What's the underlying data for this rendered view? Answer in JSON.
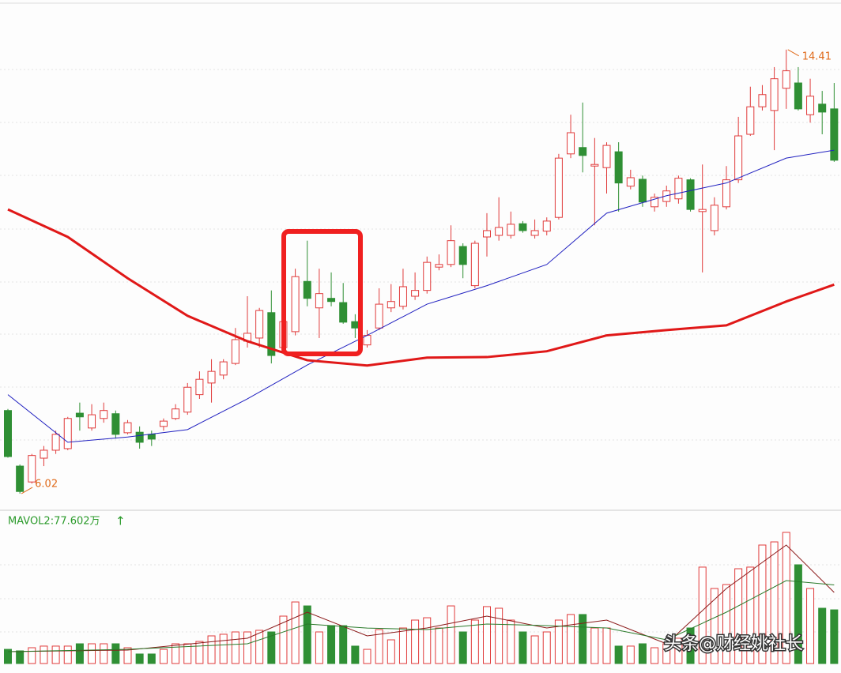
{
  "chart_data": [
    {
      "type": "candlestick",
      "up_color": "#e03a3a",
      "down_color": "#2f8f34",
      "ylim": [
        5.72,
        14.9
      ],
      "high_label": "14.41",
      "low_label": "6.02",
      "label_color": "#e06a1a",
      "open": [
        7.59,
        6.54,
        6.24,
        6.69,
        6.84,
        6.87,
        7.54,
        7.26,
        7.44,
        7.53,
        7.17,
        7.18,
        7.14,
        7.29,
        7.44,
        7.56,
        7.89,
        8.11,
        8.26,
        8.48,
        8.9,
        8.96,
        9.44,
        8.78,
        9.08,
        10.03,
        9.53,
        9.71,
        9.63,
        9.27,
        8.83,
        9.15,
        9.53,
        9.56,
        9.75,
        9.86,
        10.3,
        10.35,
        10.69,
        9.95,
        10.87,
        10.9,
        10.9,
        11.12,
        10.9,
        10.98,
        11.24,
        12.44,
        12.56,
        12.21,
        12.18,
        12.48,
        11.83,
        11.96,
        11.44,
        11.54,
        11.59,
        11.95,
        11.35,
        10.99,
        11.44,
        11.95,
        12.81,
        13.33,
        13.26,
        13.68,
        13.78,
        13.18,
        13.38,
        13.29
      ],
      "high": [
        7.62,
        6.57,
        6.77,
        6.92,
        7.21,
        7.47,
        7.74,
        7.71,
        7.74,
        7.59,
        7.41,
        7.29,
        7.21,
        7.44,
        7.71,
        8.11,
        8.33,
        8.56,
        8.56,
        9.15,
        9.75,
        9.53,
        9.86,
        9.45,
        10.27,
        10.8,
        10.27,
        10.2,
        10.0,
        9.41,
        9.11,
        9.9,
        9.98,
        10.27,
        10.2,
        10.5,
        10.54,
        11.09,
        10.75,
        10.8,
        11.32,
        11.62,
        11.35,
        11.17,
        11.2,
        11.24,
        12.44,
        13.18,
        13.41,
        12.74,
        12.66,
        12.66,
        12.14,
        12.03,
        11.69,
        11.84,
        12.03,
        11.98,
        12.24,
        11.62,
        12.21,
        13.14,
        13.71,
        13.74,
        14.08,
        14.41,
        14.08,
        13.86,
        13.63,
        13.78
      ],
      "low": [
        6.7,
        6.02,
        6.21,
        6.54,
        6.77,
        6.84,
        7.21,
        7.21,
        7.36,
        7.06,
        7.14,
        6.87,
        6.92,
        7.21,
        7.41,
        7.51,
        7.81,
        7.74,
        8.18,
        8.45,
        8.78,
        8.78,
        8.48,
        8.71,
        9.01,
        9.56,
        8.96,
        9.56,
        9.23,
        8.96,
        8.78,
        9.11,
        9.45,
        9.5,
        9.68,
        9.8,
        10.24,
        10.3,
        10.09,
        9.9,
        10.5,
        10.8,
        10.84,
        10.95,
        10.84,
        10.9,
        11.2,
        12.36,
        12.09,
        11.09,
        11.69,
        11.35,
        11.77,
        11.44,
        11.35,
        11.44,
        11.5,
        11.35,
        10.2,
        10.9,
        11.39,
        11.89,
        12.78,
        13.26,
        12.51,
        13.29,
        13.26,
        13.03,
        12.81,
        12.29
      ],
      "close": [
        6.72,
        6.06,
        6.74,
        6.84,
        7.14,
        7.44,
        7.47,
        7.51,
        7.59,
        7.14,
        7.36,
        6.99,
        7.05,
        7.39,
        7.62,
        8.03,
        8.18,
        8.33,
        8.51,
        8.93,
        9.05,
        9.48,
        8.63,
        9.27,
        10.12,
        9.71,
        9.8,
        9.65,
        9.26,
        9.15,
        9.01,
        9.6,
        9.65,
        9.93,
        9.86,
        10.39,
        10.35,
        10.8,
        10.35,
        10.75,
        10.99,
        11.05,
        11.11,
        10.99,
        10.99,
        11.17,
        12.36,
        12.84,
        12.41,
        12.24,
        12.6,
        11.89,
        11.99,
        11.53,
        11.62,
        11.74,
        11.98,
        11.39,
        11.39,
        11.47,
        11.95,
        12.78,
        13.33,
        13.56,
        13.86,
        14.01,
        13.29,
        13.53,
        13.23,
        12.32
      ],
      "series": [
        {
          "color": "#2020c0",
          "width": 1,
          "x": [
            0,
            5,
            10,
            15,
            20,
            25,
            30,
            35,
            40,
            45,
            50,
            55,
            60,
            65,
            69
          ],
          "values": [
            7.89,
            6.99,
            7.09,
            7.23,
            7.81,
            8.45,
            9.01,
            9.6,
            9.95,
            10.35,
            11.32,
            11.65,
            11.89,
            12.36,
            12.51
          ]
        },
        {
          "color": "#e01818",
          "width": 3,
          "x": [
            0,
            5,
            10,
            15,
            20,
            25,
            30,
            35,
            40,
            45,
            50,
            55,
            60,
            65,
            69
          ],
          "values": [
            11.39,
            10.87,
            10.09,
            9.38,
            8.9,
            8.54,
            8.44,
            8.59,
            8.6,
            8.71,
            9.01,
            9.11,
            9.2,
            9.65,
            9.97
          ]
        }
      ]
    },
    {
      "type": "volume",
      "label": "MAVOL2:77.602万",
      "arrow": "↑",
      "label_color": "#2a9a2a",
      "ylim": [
        0,
        148.2
      ],
      "values": [
        14.0,
        12.5,
        15.6,
        17.2,
        17.2,
        17.2,
        19.5,
        19.5,
        19.5,
        19.5,
        15.6,
        9.4,
        9.4,
        14.0,
        19.5,
        19.5,
        21.8,
        27.3,
        28.9,
        31.2,
        31.2,
        32.8,
        31.2,
        46.8,
        60.8,
        56.9,
        31.2,
        37.4,
        37.4,
        17.2,
        14.0,
        33.5,
        23.4,
        35.1,
        42.9,
        45.2,
        35.1,
        56.9,
        31.2,
        42.9,
        56.2,
        54.6,
        42.9,
        31.2,
        27.3,
        31.2,
        42.9,
        48.4,
        48.4,
        35.1,
        35.1,
        17.2,
        17.2,
        19.5,
        15.6,
        19.5,
        25.0,
        35.1,
        95.2,
        74.1,
        78.0,
        93.6,
        95.2,
        117.0,
        120.1,
        129.5,
        97.5,
        74.1,
        54.6,
        53.0
      ],
      "series": [
        {
          "color": "#8b1a1a",
          "x": [
            0,
            10,
            20,
            25,
            30,
            35,
            40,
            45,
            50,
            55,
            60,
            65,
            69
          ],
          "values": [
            11.7,
            13.3,
            25.0,
            50.7,
            27.3,
            35.1,
            46.8,
            35.1,
            42.9,
            19.5,
            74.1,
            117.0,
            70.2
          ]
        },
        {
          "color": "#2a7a2a",
          "x": [
            0,
            10,
            20,
            25,
            30,
            35,
            40,
            45,
            50,
            55,
            60,
            65,
            69
          ],
          "values": [
            11.7,
            14.0,
            19.5,
            39.0,
            35.0,
            33.5,
            39.0,
            37.4,
            35.1,
            23.4,
            50.7,
            81.9,
            77.602
          ]
        }
      ]
    }
  ],
  "watermark": "头条@财经姚社长"
}
